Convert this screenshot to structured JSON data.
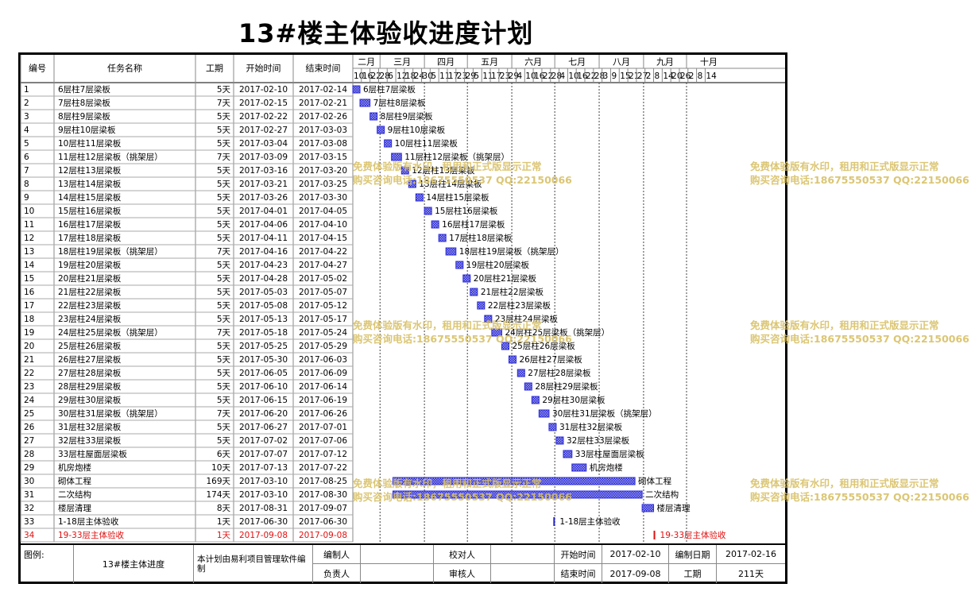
{
  "title": "13#楼主体验收进度计划",
  "header": {
    "id": "编号",
    "name": "任务名称",
    "duration": "工期",
    "start": "开始时间",
    "end": "结束时间"
  },
  "months": [
    "二月",
    "三月",
    "四月",
    "五月",
    "六月",
    "七月",
    "八月",
    "九月",
    "十月"
  ],
  "day_ticks": [
    "10",
    "16",
    "22",
    "28",
    "6",
    "12",
    "18",
    "24",
    "30",
    "5",
    "11",
    "17",
    "23",
    "29",
    "5",
    "11",
    "17",
    "23",
    "29",
    "4",
    "10",
    "16",
    "22",
    "28",
    "4",
    "10",
    "16",
    "22",
    "28",
    "3",
    "9",
    "15",
    "21",
    "27",
    "2",
    "8",
    "14",
    "20",
    "26",
    "2",
    "8",
    "14"
  ],
  "tasks": [
    {
      "id": "1",
      "name": "6层柱7层梁板",
      "duration": "5天",
      "start": "2017-02-10",
      "end": "2017-02-14"
    },
    {
      "id": "2",
      "name": "7层柱8层梁板",
      "duration": "7天",
      "start": "2017-02-15",
      "end": "2017-02-21"
    },
    {
      "id": "3",
      "name": "8层柱9层梁板",
      "duration": "5天",
      "start": "2017-02-22",
      "end": "2017-02-26"
    },
    {
      "id": "4",
      "name": "9层柱10层梁板",
      "duration": "5天",
      "start": "2017-02-27",
      "end": "2017-03-03"
    },
    {
      "id": "5",
      "name": "10层柱11层梁板",
      "duration": "5天",
      "start": "2017-03-04",
      "end": "2017-03-08"
    },
    {
      "id": "6",
      "name": "11层柱12层梁板（挑架层）",
      "duration": "7天",
      "start": "2017-03-09",
      "end": "2017-03-15"
    },
    {
      "id": "7",
      "name": "12层柱13层梁板",
      "duration": "5天",
      "start": "2017-03-16",
      "end": "2017-03-20"
    },
    {
      "id": "8",
      "name": "13层柱14层梁板",
      "duration": "5天",
      "start": "2017-03-21",
      "end": "2017-03-25"
    },
    {
      "id": "9",
      "name": "14层柱15层梁板",
      "duration": "5天",
      "start": "2017-03-26",
      "end": "2017-03-30"
    },
    {
      "id": "10",
      "name": "15层柱16层梁板",
      "duration": "5天",
      "start": "2017-04-01",
      "end": "2017-04-05"
    },
    {
      "id": "11",
      "name": "16层柱17层梁板",
      "duration": "5天",
      "start": "2017-04-06",
      "end": "2017-04-10"
    },
    {
      "id": "12",
      "name": "17层柱18层梁板",
      "duration": "5天",
      "start": "2017-04-11",
      "end": "2017-04-15"
    },
    {
      "id": "13",
      "name": "18层柱19层梁板（挑架层）",
      "duration": "7天",
      "start": "2017-04-16",
      "end": "2017-04-22"
    },
    {
      "id": "14",
      "name": "19层柱20层梁板",
      "duration": "5天",
      "start": "2017-04-23",
      "end": "2017-04-27"
    },
    {
      "id": "15",
      "name": "20层柱21层梁板",
      "duration": "5天",
      "start": "2017-04-28",
      "end": "2017-05-02"
    },
    {
      "id": "16",
      "name": "21层柱22层梁板",
      "duration": "5天",
      "start": "2017-05-03",
      "end": "2017-05-07"
    },
    {
      "id": "17",
      "name": "22层柱23层梁板",
      "duration": "5天",
      "start": "2017-05-08",
      "end": "2017-05-12"
    },
    {
      "id": "18",
      "name": "23层柱24层梁板",
      "duration": "5天",
      "start": "2017-05-13",
      "end": "2017-05-17"
    },
    {
      "id": "19",
      "name": "24层柱25层梁板（挑架层）",
      "duration": "7天",
      "start": "2017-05-18",
      "end": "2017-05-24"
    },
    {
      "id": "20",
      "name": "25层柱26层梁板",
      "duration": "5天",
      "start": "2017-05-25",
      "end": "2017-05-29"
    },
    {
      "id": "21",
      "name": "26层柱27层梁板",
      "duration": "5天",
      "start": "2017-05-30",
      "end": "2017-06-03"
    },
    {
      "id": "22",
      "name": "27层柱28层梁板",
      "duration": "5天",
      "start": "2017-06-05",
      "end": "2017-06-09"
    },
    {
      "id": "23",
      "name": "28层柱29层梁板",
      "duration": "5天",
      "start": "2017-06-10",
      "end": "2017-06-14"
    },
    {
      "id": "24",
      "name": "29层柱30层梁板",
      "duration": "5天",
      "start": "2017-06-15",
      "end": "2017-06-19"
    },
    {
      "id": "25",
      "name": "30层柱31层梁板（挑架层）",
      "duration": "7天",
      "start": "2017-06-20",
      "end": "2017-06-26"
    },
    {
      "id": "26",
      "name": "31层柱32层梁板",
      "duration": "5天",
      "start": "2017-06-27",
      "end": "2017-07-01"
    },
    {
      "id": "27",
      "name": "32层柱33层梁板",
      "duration": "5天",
      "start": "2017-07-02",
      "end": "2017-07-06"
    },
    {
      "id": "28",
      "name": "33层柱屋面层梁板",
      "duration": "6天",
      "start": "2017-07-07",
      "end": "2017-07-12"
    },
    {
      "id": "29",
      "name": "机房炮楼",
      "duration": "10天",
      "start": "2017-07-13",
      "end": "2017-07-22"
    },
    {
      "id": "30",
      "name": "砌体工程",
      "duration": "169天",
      "start": "2017-03-10",
      "end": "2017-08-25"
    },
    {
      "id": "31",
      "name": "二次结构",
      "duration": "174天",
      "start": "2017-03-10",
      "end": "2017-08-30"
    },
    {
      "id": "32",
      "name": "楼层清理",
      "duration": "8天",
      "start": "2017-08-31",
      "end": "2017-09-07"
    },
    {
      "id": "33",
      "name": "1-18层主体验收",
      "duration": "1天",
      "start": "2017-06-30",
      "end": "2017-06-30",
      "milestone": true
    },
    {
      "id": "34",
      "name": "19-33层主体验收",
      "duration": "1天",
      "start": "2017-09-08",
      "end": "2017-09-08",
      "milestone": true,
      "highlight": true
    }
  ],
  "watermark": {
    "line1": "免费体验版有水印，租用和正式版显示正常",
    "line2": "购买咨询电话:18675550537 QQ:22150066"
  },
  "footer": {
    "legend_label": "图例:",
    "legend_name": "13#楼主体进度",
    "software_note": "本计划由易利项目管理软件编制",
    "prepared_by": "编制人",
    "checked_by": "校对人",
    "start_label": "开始时间",
    "start_value": "2017-02-10",
    "prep_date_label": "编制日期",
    "prep_date_value": "2017-02-16",
    "responsible": "负责人",
    "reviewer": "审核人",
    "end_label": "结束时间",
    "end_value": "2017-09-08",
    "duration_label": "工期",
    "duration_value": "211天"
  },
  "colors": {
    "bar": "#2b2bd8",
    "bar_hatch": "#9a9ae8",
    "milestone": "#2222cc",
    "highlight": "#e01010",
    "watermark": "#d8c066"
  }
}
